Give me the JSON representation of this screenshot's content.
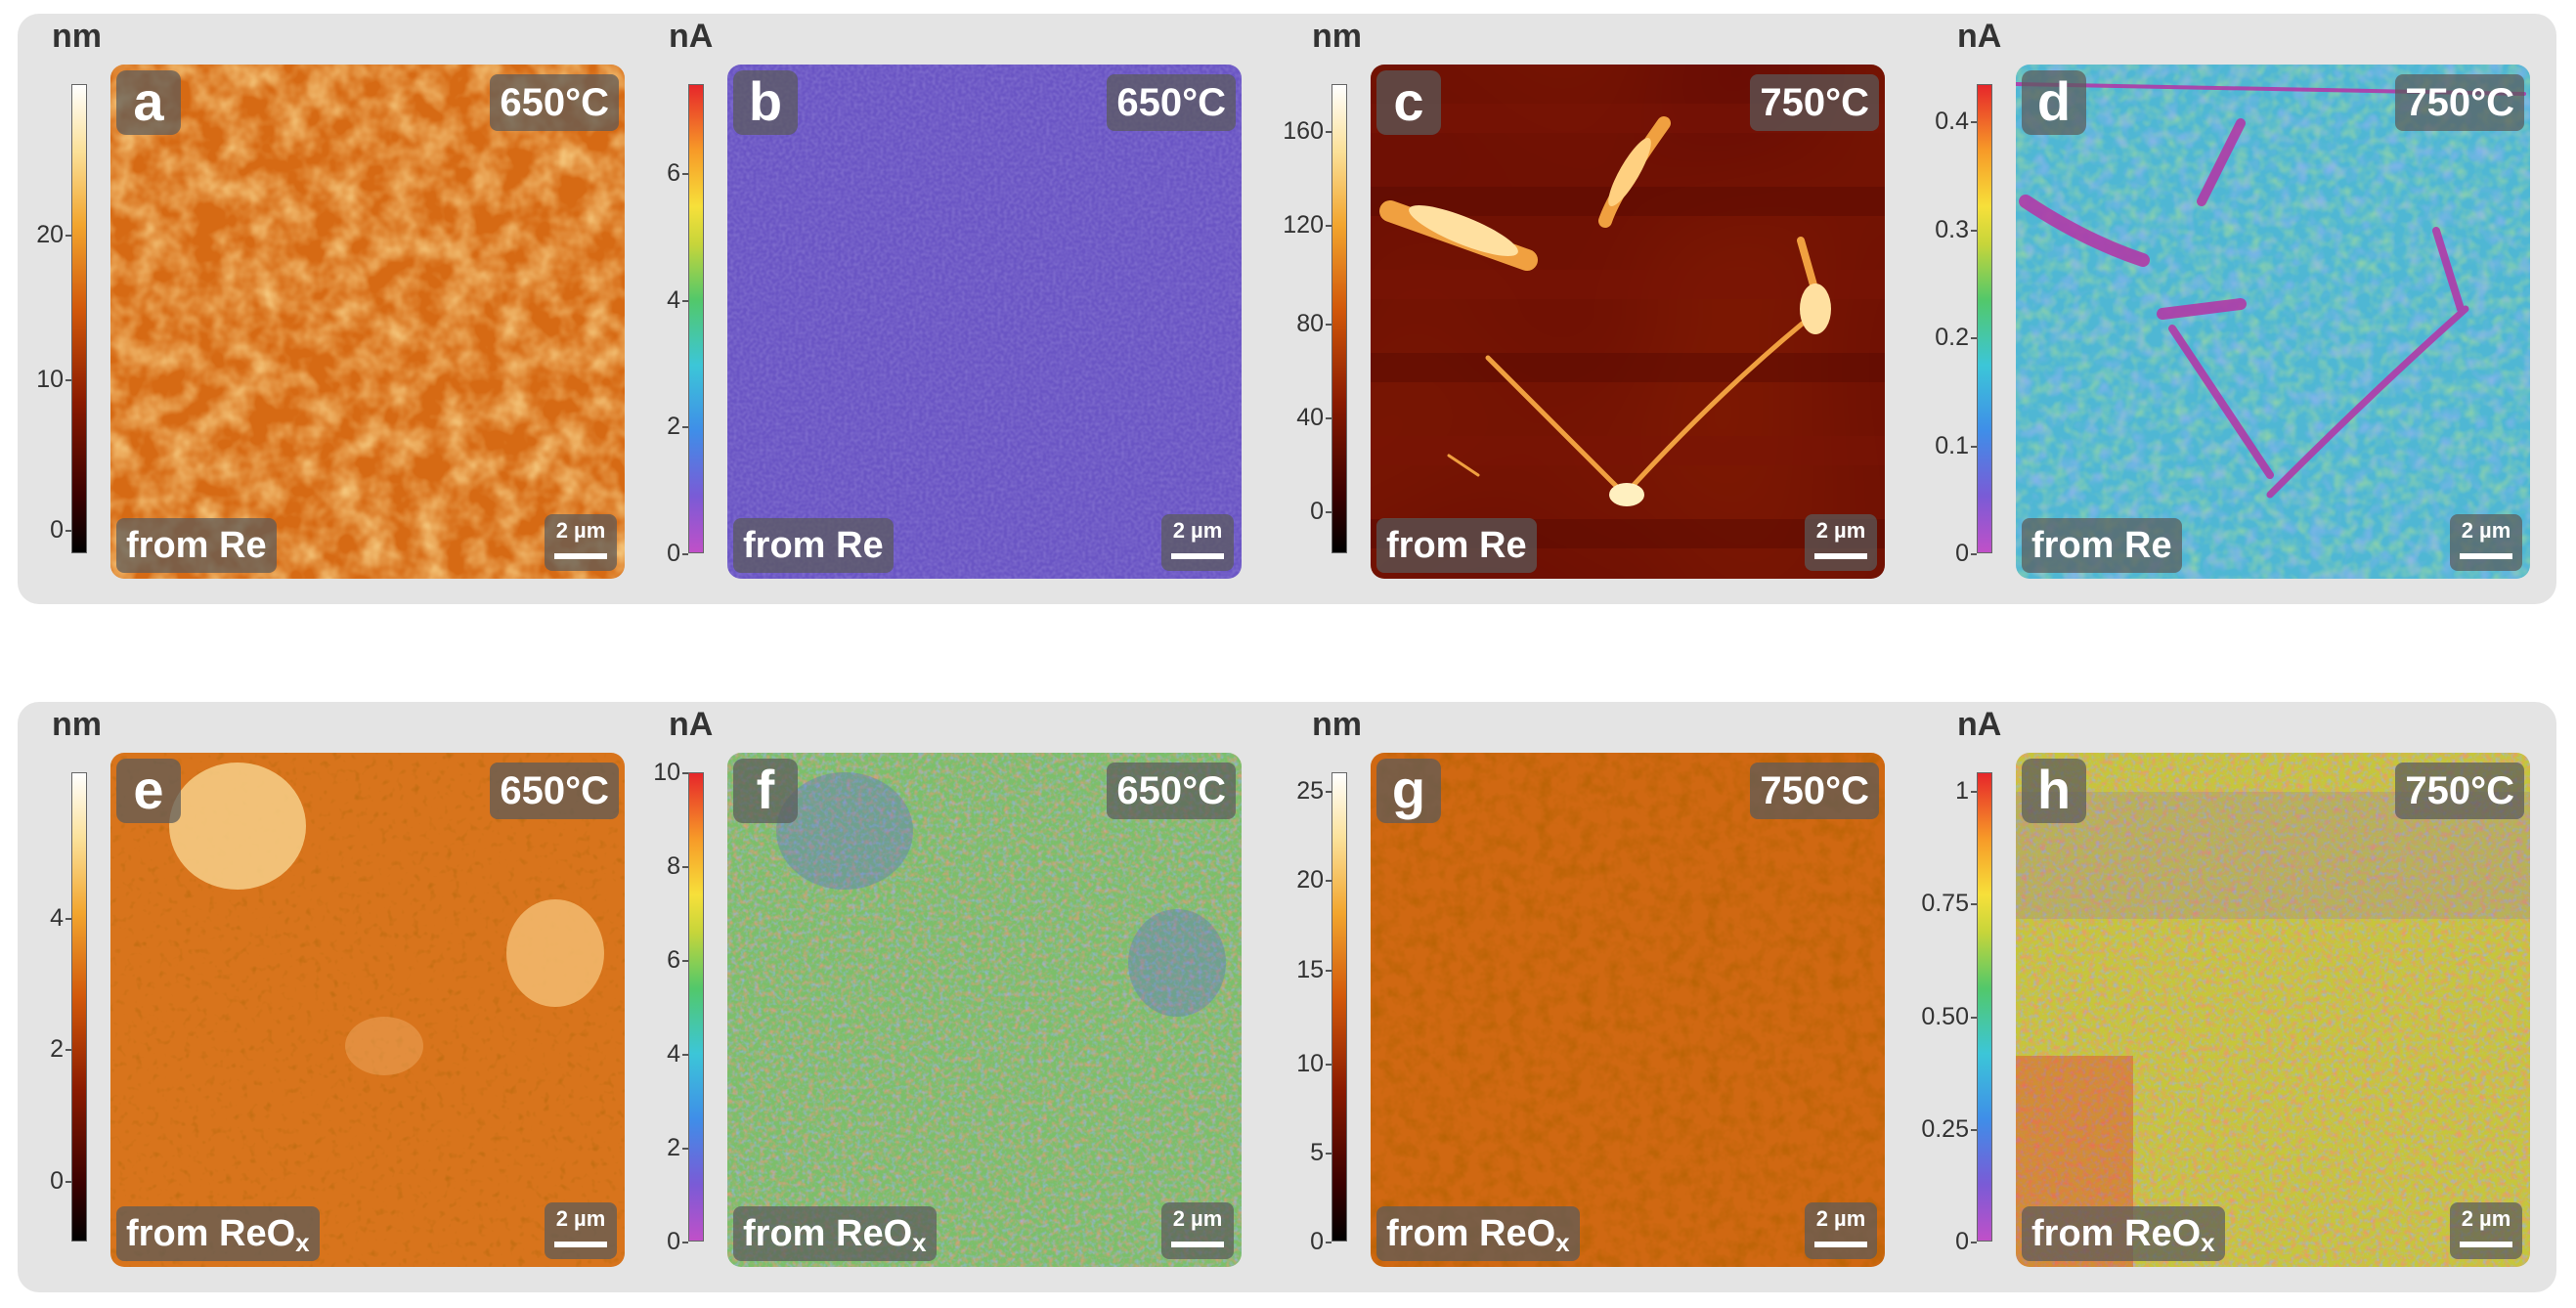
{
  "scale_label": "2 µm",
  "panels": [
    {
      "letter": "a",
      "temp": "650°C",
      "source": "from Re",
      "source_sub": "",
      "unit": "nm",
      "ticks": [
        "0",
        "10",
        "20"
      ],
      "tick_fracs": [
        0.05,
        0.37,
        0.68
      ],
      "cmap": "afm",
      "pattern": "grainy"
    },
    {
      "letter": "b",
      "temp": "650°C",
      "source": "from Re",
      "source_sub": "",
      "unit": "nA",
      "ticks": [
        "0",
        "2",
        "4",
        "6"
      ],
      "tick_fracs": [
        0.0,
        0.27,
        0.54,
        0.81
      ],
      "cmap": "rainbow",
      "pattern": "flat"
    },
    {
      "letter": "c",
      "temp": "750°C",
      "source": "from Re",
      "source_sub": "",
      "unit": "nm",
      "ticks": [
        "0",
        "40",
        "80",
        "120",
        "160"
      ],
      "tick_fracs": [
        0.09,
        0.29,
        0.49,
        0.7,
        0.9
      ],
      "cmap": "afm",
      "pattern": "flakes"
    },
    {
      "letter": "d",
      "temp": "750°C",
      "source": "from Re",
      "source_sub": "",
      "unit": "nA",
      "ticks": [
        "0",
        "0.1",
        "0.2",
        "0.3",
        "0.4"
      ],
      "tick_fracs": [
        0.0,
        0.23,
        0.46,
        0.69,
        0.92
      ],
      "cmap": "rainbow",
      "pattern": "network"
    },
    {
      "letter": "e",
      "temp": "650°C",
      "source": "from ReO",
      "source_sub": "x",
      "unit": "nm",
      "ticks": [
        "0",
        "2",
        "4"
      ],
      "tick_fracs": [
        0.13,
        0.41,
        0.69
      ],
      "cmap": "afm",
      "pattern": "islands"
    },
    {
      "letter": "f",
      "temp": "650°C",
      "source": "from ReO",
      "source_sub": "x",
      "unit": "nA",
      "ticks": [
        "0",
        "2",
        "4",
        "6",
        "8",
        "10"
      ],
      "tick_fracs": [
        0.0,
        0.2,
        0.4,
        0.6,
        0.8,
        1.0
      ],
      "cmap": "rainbow",
      "pattern": "noisy"
    },
    {
      "letter": "g",
      "temp": "750°C",
      "source": "from ReO",
      "source_sub": "x",
      "unit": "nm",
      "ticks": [
        "0",
        "5",
        "10",
        "15",
        "20",
        "25"
      ],
      "tick_fracs": [
        0.0,
        0.19,
        0.38,
        0.58,
        0.77,
        0.96
      ],
      "cmap": "afm",
      "pattern": "grainy-fine"
    },
    {
      "letter": "h",
      "temp": "750°C",
      "source": "from ReO",
      "source_sub": "x",
      "unit": "nA",
      "ticks": [
        "0",
        "0.25",
        "0.50",
        "0.75",
        "1"
      ],
      "tick_fracs": [
        0.0,
        0.24,
        0.48,
        0.72,
        0.96
      ],
      "cmap": "rainbow",
      "pattern": "noisy-warm"
    }
  ]
}
